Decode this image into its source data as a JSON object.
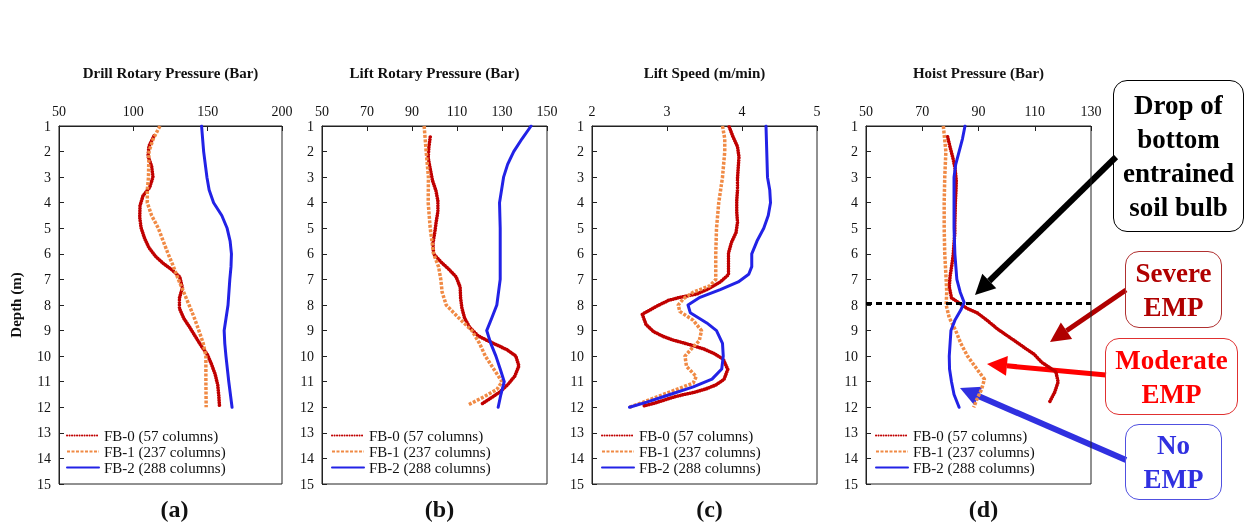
{
  "chart_data": [
    {
      "type": "line",
      "title": "(a)",
      "xlabel": "Drill Rotary Pressure (Bar)",
      "ylabel": "Depth (m)",
      "xlim": [
        50,
        200
      ],
      "xticks": [
        50,
        100,
        150,
        200
      ],
      "ylim": [
        15,
        1
      ],
      "yticks": [
        1,
        2,
        3,
        4,
        5,
        6,
        7,
        8,
        9,
        10,
        11,
        12,
        13,
        14,
        15
      ],
      "legend": "bottom left",
      "marker": "none",
      "series": [
        {
          "name": "FB-0 (57 columns)",
          "color": "#c00000",
          "line_style": "dotted",
          "x": [
            113.9,
            110.5,
            109.9,
            112.3,
            113.2,
            111,
            106.5,
            104.5,
            104.3,
            105.2,
            107.6,
            110.5,
            115,
            120.3,
            125.9,
            131.2,
            133,
            131,
            131,
            133.9,
            137.9,
            141.7,
            145.7,
            149.9,
            152.6,
            155,
            156.8,
            157.5,
            158
          ],
          "values": [
            1.39,
            1.79,
            2.18,
            2.57,
            3.0,
            3.4,
            3.73,
            4.12,
            4.57,
            4.98,
            5.4,
            5.76,
            6.1,
            6.38,
            6.62,
            6.9,
            7.33,
            7.73,
            8.13,
            8.52,
            8.87,
            9.23,
            9.6,
            9.95,
            10.32,
            10.7,
            11.14,
            11.56,
            11.98
          ]
        },
        {
          "name": "FB-1 (237 columns)",
          "color": "#f08a45",
          "line_style": "dashed",
          "x": [
            117.9,
            113.4,
            110.5,
            110.2,
            109.4,
            109.4,
            112.3,
            116.8,
            120.1,
            123.4,
            127,
            130.3,
            133.9,
            137.5,
            141,
            144.1,
            147,
            148.8,
            148.8,
            148.8,
            149
          ],
          "values": [
            1,
            1.5,
            2,
            3,
            3.5,
            4,
            4.5,
            5,
            5.5,
            6,
            6.5,
            7,
            7.5,
            8,
            8.5,
            9,
            9.5,
            10,
            10.5,
            11,
            12
          ]
        },
        {
          "name": "FB-2 (288 columns)",
          "color": "#2222e6",
          "line_style": "solid",
          "x": [
            145.9,
            147.3,
            149.5,
            151,
            154,
            159.5,
            163.1,
            165.1,
            166,
            165.7,
            164.9,
            163.7,
            162.4,
            161.1,
            161.5,
            162.3,
            164.2,
            166.4
          ],
          "values": [
            1,
            2,
            3,
            3.5,
            4,
            4.5,
            5,
            5.5,
            6,
            6.5,
            7,
            8,
            8.5,
            9,
            9.5,
            10,
            11,
            12
          ]
        }
      ]
    },
    {
      "type": "line",
      "title": "(b)",
      "xlabel": "Lift Rotary Pressure (Bar)",
      "xlim": [
        50,
        150
      ],
      "xticks": [
        50,
        70,
        90,
        110,
        130,
        150
      ],
      "ylim": [
        15,
        1
      ],
      "yticks": [
        1,
        2,
        3,
        4,
        5,
        6,
        7,
        8,
        9,
        10,
        11,
        12,
        13,
        14,
        15
      ],
      "legend": "bottom left",
      "marker": "none",
      "series": [
        {
          "name": "FB-0 (57 columns)",
          "color": "#c00000",
          "line_style": "dotted",
          "x": [
            98.1,
            97.5,
            97.2,
            98.1,
            99.1,
            100.6,
            101.5,
            101.5,
            100.7,
            100.1,
            99.3,
            99.6,
            102.8,
            106.4,
            109.6,
            111.4,
            111.6,
            112.2,
            113.4,
            115.6,
            119.3,
            123.7,
            127.9,
            132.2,
            136.1,
            137.5,
            135.7,
            132.7,
            128.9,
            125.2,
            121
          ],
          "values": [
            1.43,
            1.83,
            2.25,
            2.68,
            3.13,
            3.52,
            3.93,
            4.35,
            4.78,
            5.17,
            5.59,
            6.0,
            6.31,
            6.6,
            6.9,
            7.3,
            7.72,
            8.13,
            8.52,
            8.87,
            9.2,
            9.4,
            9.57,
            9.75,
            9.99,
            10.38,
            10.78,
            11.1,
            11.41,
            11.63,
            11.87
          ]
        },
        {
          "name": "FB-1 (237 columns)",
          "color": "#f08a45",
          "line_style": "dashed",
          "x": [
            95.4,
            96.3,
            97.3,
            97.2,
            98.1,
            99.6,
            101.8,
            102.8,
            103.4,
            105.2,
            110.7,
            116.6,
            120,
            122.6,
            126.3,
            130,
            127.7,
            121.8,
            115.1
          ],
          "values": [
            1,
            2,
            3,
            4,
            5,
            6,
            6.5,
            7,
            7.5,
            8,
            8.5,
            9,
            9.5,
            10,
            10.5,
            11,
            11.3,
            11.6,
            11.9
          ]
        },
        {
          "name": "FB-2 (288 columns)",
          "color": "#2222e6",
          "line_style": "solid",
          "x": [
            142.9,
            138.9,
            135.2,
            132.5,
            130.7,
            128.9,
            129.2,
            129.2,
            129.2,
            127.7,
            125.5,
            123.2,
            125,
            127.3,
            129.2,
            131,
            129.5,
            128.3
          ],
          "values": [
            1,
            1.5,
            2,
            2.5,
            3,
            4,
            5,
            6,
            7,
            8,
            8.5,
            9,
            9.5,
            10,
            10.5,
            11,
            11.5,
            12
          ]
        }
      ]
    },
    {
      "type": "line",
      "title": "(c)",
      "xlabel": "Lift Speed (m/min)",
      "xlim": [
        2,
        5
      ],
      "xticks": [
        2,
        3,
        4,
        5
      ],
      "ylim": [
        15,
        1
      ],
      "yticks": [
        1,
        2,
        3,
        4,
        5,
        6,
        7,
        8,
        9,
        10,
        11,
        12,
        13,
        14,
        15
      ],
      "legend": "bottom left",
      "marker": "none",
      "series": [
        {
          "name": "FB-0 (57 columns)",
          "color": "#c00000",
          "line_style": "dotted",
          "x": [
            3.83,
            3.88,
            3.94,
            3.96,
            3.95,
            3.94,
            3.94,
            3.93,
            3.93,
            3.94,
            3.92,
            3.86,
            3.82,
            3.82,
            3.82,
            3.71,
            3.55,
            3.4,
            3.16,
            3.02,
            2.88,
            2.67,
            2.72,
            2.82,
            2.95,
            3.08,
            3.23,
            3.36,
            3.5,
            3.63,
            3.75,
            3.81,
            3.76,
            3.65,
            3.52,
            3.37,
            3.23,
            3.1,
            2.96,
            2.82,
            2.67
          ],
          "values": [
            1.04,
            1.42,
            1.81,
            2.21,
            2.61,
            3.06,
            3.49,
            3.91,
            4.35,
            4.77,
            5.17,
            5.55,
            5.97,
            6.38,
            6.81,
            7.1,
            7.37,
            7.57,
            7.71,
            7.82,
            8.02,
            8.36,
            8.76,
            9.04,
            9.23,
            9.37,
            9.49,
            9.6,
            9.73,
            9.9,
            10.12,
            10.52,
            10.91,
            11.13,
            11.28,
            11.41,
            11.5,
            11.59,
            11.72,
            11.85,
            11.96
          ]
        },
        {
          "name": "FB-1 (237 columns)",
          "color": "#f08a45",
          "line_style": "dashed",
          "x": [
            3.74,
            3.77,
            3.77,
            3.74,
            3.69,
            3.66,
            3.65,
            3.65,
            3.57,
            3.35,
            3.22,
            3.15,
            3.17,
            3.35,
            3.46,
            3.43,
            3.33,
            3.24,
            3.26,
            3.39,
            3.35,
            3.13,
            2.86,
            2.64,
            2.5
          ],
          "values": [
            1,
            1.5,
            2,
            3,
            4,
            5,
            6,
            7,
            7.25,
            7.5,
            7.75,
            8,
            8.25,
            8.6,
            9,
            9.4,
            9.7,
            10,
            10.4,
            10.8,
            11.05,
            11.3,
            11.6,
            11.85,
            12
          ]
        },
        {
          "name": "FB-2 (288 columns)",
          "color": "#2222e6",
          "line_style": "solid",
          "x": [
            4.32,
            4.33,
            4.34,
            4.37,
            4.38,
            4.35,
            4.29,
            4.2,
            4.13,
            4.13,
            4.09,
            3.95,
            3.71,
            3.44,
            3.28,
            3.31,
            3.53,
            3.66,
            3.74,
            3.75,
            3.73,
            3.6,
            3.35,
            3.04,
            2.73,
            2.5
          ],
          "values": [
            1,
            2,
            3,
            3.5,
            4,
            4.5,
            5,
            5.5,
            6,
            6.5,
            6.8,
            7.1,
            7.4,
            7.7,
            8,
            8.3,
            8.7,
            9,
            9.5,
            10,
            10.5,
            10.9,
            11.2,
            11.5,
            11.8,
            12
          ]
        }
      ]
    },
    {
      "type": "line",
      "title": "(d)",
      "xlabel": "Hoist Pressure (Bar)",
      "xlim": [
        50,
        130
      ],
      "xticks": [
        50,
        70,
        90,
        110,
        130
      ],
      "ylim": [
        15,
        1
      ],
      "yticks": [
        1,
        2,
        3,
        4,
        5,
        6,
        7,
        8,
        9,
        10,
        11,
        12,
        13,
        14,
        15
      ],
      "legend": "bottom left",
      "marker": "none",
      "ref_lines": [
        {
          "axis": "y",
          "value": 7.95,
          "color": "#000000",
          "line_style": "dashed"
        }
      ],
      "annotations": [
        "Drop of bottom entrained soil bulb",
        "Severe EMP",
        "Moderate EMP",
        "No EMP"
      ],
      "series": [
        {
          "name": "FB-0 (57 columns)",
          "color": "#c00000",
          "line_style": "dotted",
          "x": [
            79,
            79.9,
            80.9,
            81.7,
            82.1,
            82,
            81.8,
            81.7,
            81.6,
            81.6,
            81.3,
            81,
            80.5,
            79.9,
            79.6,
            80.4,
            85.9,
            89.7,
            93.3,
            96.8,
            100.2,
            103.4,
            106.6,
            109.7,
            112.6,
            117.5,
            118.3,
            117.1,
            115.3
          ],
          "values": [
            1.42,
            1.83,
            2.25,
            2.68,
            3.13,
            3.52,
            3.95,
            4.37,
            4.78,
            5.17,
            5.59,
            6.05,
            6.45,
            6.87,
            7.3,
            7.72,
            8.13,
            8.32,
            8.62,
            8.94,
            9.2,
            9.44,
            9.69,
            9.92,
            10.25,
            10.61,
            11.01,
            11.41,
            11.79
          ]
        },
        {
          "name": "FB-1 (237 columns)",
          "color": "#f08a45",
          "line_style": "dashed",
          "x": [
            77.5,
            78.4,
            78,
            77.8,
            77.8,
            78,
            78.5,
            78.7,
            78.5,
            79.6,
            81.9,
            83.7,
            86.1,
            89.4,
            92.1,
            91.1,
            89.4,
            88.3
          ],
          "values": [
            1,
            2,
            3,
            4,
            5,
            6,
            7,
            7.5,
            8,
            8.5,
            9,
            9.5,
            10,
            10.5,
            10.9,
            11.3,
            11.7,
            12
          ]
        },
        {
          "name": "FB-2 (288 columns)",
          "color": "#2222e6",
          "line_style": "solid",
          "x": [
            85.2,
            84.3,
            83.1,
            81.9,
            81.3,
            81.3,
            81.3,
            81.6,
            82.3,
            83.5,
            84.9,
            83.7,
            81.6,
            80.2,
            79.9,
            79.6,
            79.7,
            80.4,
            81.3,
            83.1
          ],
          "values": [
            1,
            1.5,
            2,
            2.5,
            3,
            4,
            5,
            6,
            7,
            7.5,
            7.9,
            8.2,
            8.6,
            9,
            9.5,
            10,
            10.5,
            11,
            11.5,
            12
          ]
        }
      ]
    }
  ]
}
